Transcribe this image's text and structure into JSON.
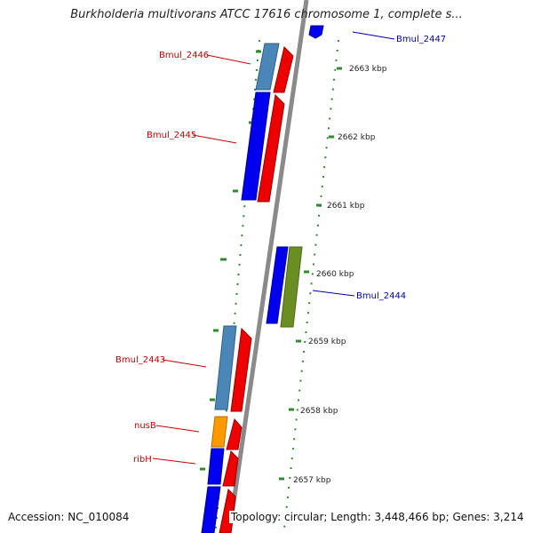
{
  "title": "Burkholderia multivorans ATCC 17616 chromosome 1, complete s...",
  "footer": {
    "accession": "Accession: NC_010084",
    "topology": "Topology: circular; Length: 3,448,466 bp; Genes: 3,214"
  },
  "colors": {
    "backbone": "#8a8a8a",
    "tick": "#2e8b2e",
    "label_forward": "#cc0000",
    "label_reverse": "#0000aa",
    "gene_blue": "#0000ee",
    "gene_red": "#ee0000",
    "gene_steel": "#4a86b8",
    "gene_orange": "#ff9900",
    "gene_olive": "#6b8e23"
  },
  "genes": [
    {
      "name": "Bmul_2446",
      "strand": "left",
      "color": "gene_steel"
    },
    {
      "name": "Bmul_2445",
      "strand": "left",
      "color": "gene_blue"
    },
    {
      "name": "Bmul_2447",
      "strand": "right",
      "color": "gene_blue"
    },
    {
      "name": "Bmul_2444",
      "strand": "right",
      "color": "gene_olive"
    },
    {
      "name": "Bmul_2443",
      "strand": "left",
      "color": "gene_steel"
    },
    {
      "name": "nusB",
      "strand": "left",
      "color": "gene_orange"
    },
    {
      "name": "ribH",
      "strand": "left",
      "color": "gene_blue"
    }
  ],
  "kbp_labels": [
    "2663 kbp",
    "2662 kbp",
    "2661 kbp",
    "2660 kbp",
    "2659 kbp",
    "2658 kbp",
    "2657 kbp"
  ]
}
